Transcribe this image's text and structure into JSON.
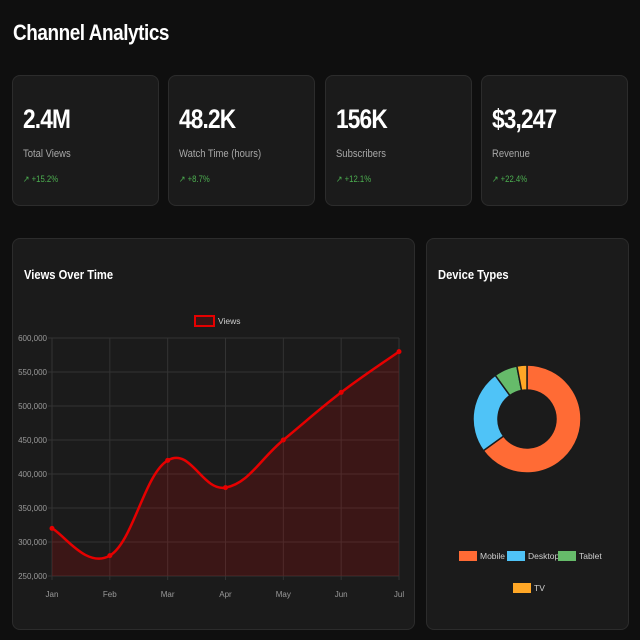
{
  "header": {
    "title": "Channel Analytics"
  },
  "stats": [
    {
      "value": "2.4M",
      "label": "Total Views",
      "change": "↗ +15.2%"
    },
    {
      "value": "48.2K",
      "label": "Watch Time (hours)",
      "change": "↗ +8.7%"
    },
    {
      "value": "156K",
      "label": "Subscribers",
      "change": "↗ +12.1%"
    },
    {
      "value": "$3,247",
      "label": "Revenue",
      "change": "↗ +22.4%"
    }
  ],
  "views_panel": {
    "title": "Views Over Time"
  },
  "device_panel": {
    "title": "Device Types"
  },
  "chart_data": [
    {
      "type": "line",
      "title": "Views Over Time",
      "categories": [
        "Jan",
        "Feb",
        "Mar",
        "Apr",
        "May",
        "Jun",
        "Jul"
      ],
      "series": [
        {
          "name": "Views",
          "values": [
            320000,
            280000,
            420000,
            380000,
            450000,
            520000,
            580000
          ],
          "color": "#e60000"
        }
      ],
      "ylim": [
        250000,
        600000
      ],
      "yticks": [
        "600,000",
        "550,000",
        "500,000",
        "450,000",
        "400,000",
        "350,000",
        "300,000",
        "250,000"
      ],
      "grid": true,
      "fill": true,
      "legend": "top-center"
    },
    {
      "type": "pie",
      "title": "Device Types",
      "labels": [
        "Mobile",
        "Desktop",
        "Tablet",
        "TV"
      ],
      "values": [
        65,
        25,
        7,
        3
      ],
      "colors": [
        "#ff6b35",
        "#4fc3f7",
        "#66bb6a",
        "#ffa726"
      ],
      "donut": true,
      "legend": "bottom"
    }
  ]
}
